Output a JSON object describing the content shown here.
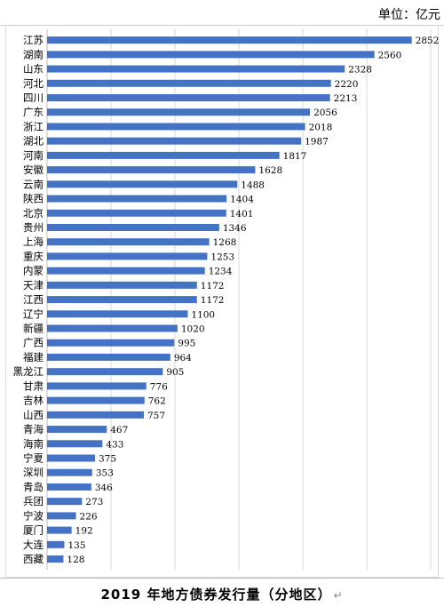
{
  "unit_label": "单位：亿元",
  "caption": "2019 年地方债券发行量（分地区）",
  "caption_mark": "↵",
  "colors": {
    "bar": "#4472c4",
    "grid": "#d9d9d9",
    "axis": "#bfbfbf",
    "text": "#000000"
  },
  "chart_data": {
    "type": "bar",
    "orientation": "horizontal",
    "title": "2019 年地方债券发行量（分地区）",
    "unit": "单位：亿元",
    "xlim": [
      0,
      3000
    ],
    "grid": true,
    "categories": [
      "江苏",
      "湖南",
      "山东",
      "河北",
      "四川",
      "广东",
      "浙江",
      "湖北",
      "河南",
      "安徽",
      "云南",
      "陕西",
      "北京",
      "贵州",
      "上海",
      "重庆",
      "内蒙",
      "天津",
      "江西",
      "辽宁",
      "新疆",
      "广西",
      "福建",
      "黑龙江",
      "甘肃",
      "吉林",
      "山西",
      "青海",
      "海南",
      "宁夏",
      "深圳",
      "青岛",
      "兵团",
      "宁波",
      "厦门",
      "大连",
      "西藏"
    ],
    "values": [
      2852,
      2560,
      2328,
      2220,
      2213,
      2056,
      2018,
      1987,
      1817,
      1628,
      1488,
      1404,
      1401,
      1346,
      1268,
      1253,
      1234,
      1172,
      1172,
      1100,
      1020,
      995,
      964,
      905,
      776,
      762,
      757,
      467,
      433,
      375,
      353,
      346,
      273,
      226,
      192,
      135,
      128
    ]
  }
}
